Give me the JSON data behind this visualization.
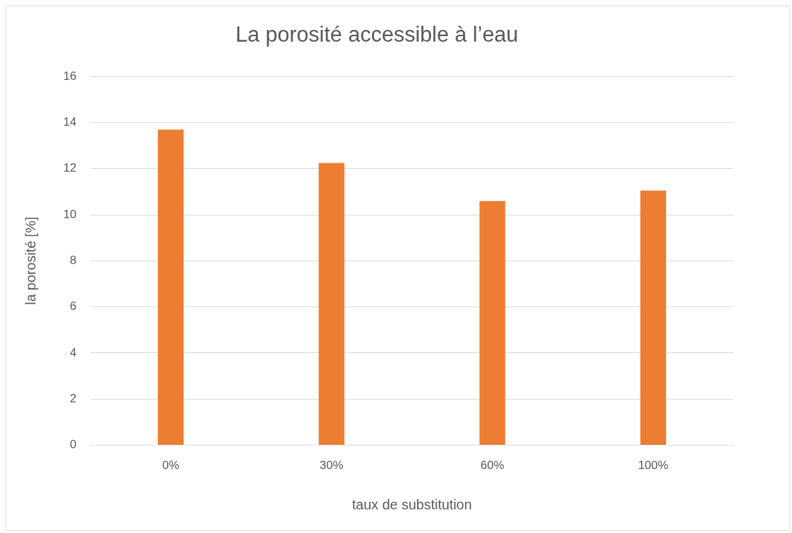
{
  "chart_data": {
    "type": "bar",
    "title": "La porosité accessible à l’eau",
    "xlabel": "taux de substitution",
    "ylabel": "la porosité [%]",
    "categories": [
      "0%",
      "30%",
      "60%",
      "100%"
    ],
    "values": [
      13.7,
      12.25,
      10.6,
      11.05
    ],
    "color": "#ed7d31",
    "ylim": [
      0,
      16
    ],
    "yticks": [
      0,
      2,
      4,
      6,
      8,
      10,
      12,
      14,
      16
    ],
    "grid": "y"
  }
}
